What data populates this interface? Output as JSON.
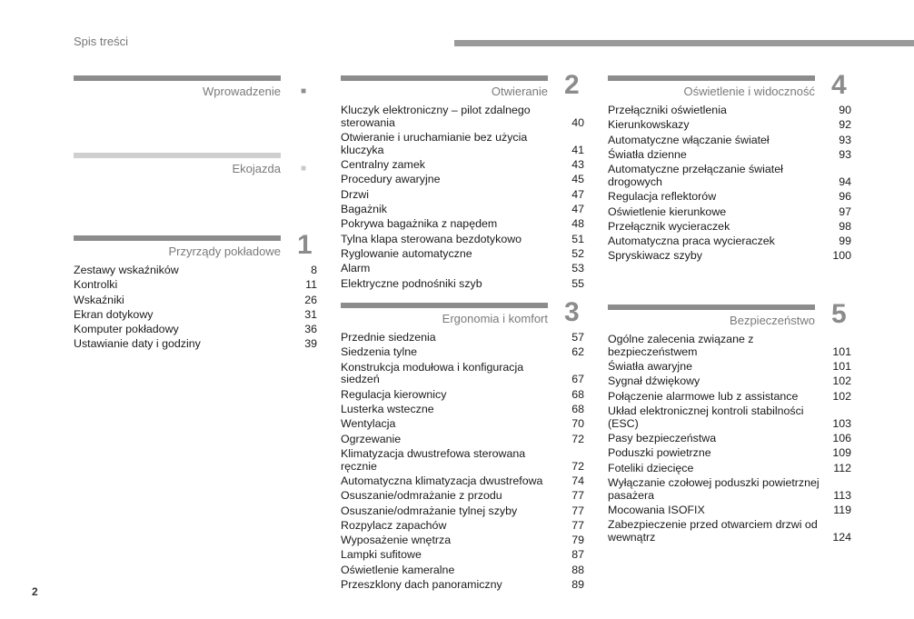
{
  "header": {
    "title": "Spis treści"
  },
  "page_number": "2",
  "sections": {
    "intro": {
      "title": "Wprowadzenie",
      "marker": "■"
    },
    "eco": {
      "title": "Ekojazda",
      "marker": "■"
    },
    "s1": {
      "title": "Przyrządy pokładowe",
      "marker": "1",
      "items": [
        {
          "t": "Zestawy wskaźników",
          "p": "8"
        },
        {
          "t": "Kontrolki",
          "p": "11"
        },
        {
          "t": "Wskaźniki",
          "p": "26"
        },
        {
          "t": "Ekran dotykowy",
          "p": "31"
        },
        {
          "t": "Komputer pokładowy",
          "p": "36"
        },
        {
          "t": "Ustawianie daty i godziny",
          "p": "39"
        }
      ]
    },
    "s2": {
      "title": "Otwieranie",
      "marker": "2",
      "items": [
        {
          "t": "Kluczyk elektroniczny – pilot zdalnego sterowania",
          "p": "40"
        },
        {
          "t": "Otwieranie i uruchamianie bez użycia kluczyka",
          "p": "41"
        },
        {
          "t": "Centralny zamek",
          "p": "43"
        },
        {
          "t": "Procedury awaryjne",
          "p": "45"
        },
        {
          "t": "Drzwi",
          "p": "47"
        },
        {
          "t": "Bagażnik",
          "p": "47"
        },
        {
          "t": "Pokrywa bagażnika z napędem",
          "p": "48"
        },
        {
          "t": "Tylna klapa sterowana bezdotykowo",
          "p": "51"
        },
        {
          "t": "Ryglowanie automatyczne",
          "p": "52"
        },
        {
          "t": "Alarm",
          "p": "53"
        },
        {
          "t": "Elektryczne podnośniki szyb",
          "p": "55"
        }
      ]
    },
    "s3": {
      "title": "Ergonomia i komfort",
      "marker": "3",
      "items": [
        {
          "t": "Przednie siedzenia",
          "p": "57"
        },
        {
          "t": "Siedzenia tylne",
          "p": "62"
        },
        {
          "t": "Konstrukcja modułowa i konfiguracja siedzeń",
          "p": "67"
        },
        {
          "t": "Regulacja kierownicy",
          "p": "68"
        },
        {
          "t": "Lusterka wsteczne",
          "p": "68"
        },
        {
          "t": "Wentylacja",
          "p": "70"
        },
        {
          "t": "Ogrzewanie",
          "p": "72"
        },
        {
          "t": "Klimatyzacja dwustrefowa sterowana ręcznie",
          "p": "72"
        },
        {
          "t": "Automatyczna klimatyzacja dwustrefowa",
          "p": "74"
        },
        {
          "t": "Osuszanie/odmrażanie z przodu",
          "p": "77"
        },
        {
          "t": "Osuszanie/odmrażanie tylnej szyby",
          "p": "77"
        },
        {
          "t": "Rozpylacz zapachów",
          "p": "77"
        },
        {
          "t": "Wyposażenie wnętrza",
          "p": "79"
        },
        {
          "t": "Lampki sufitowe",
          "p": "87"
        },
        {
          "t": "Oświetlenie kameralne",
          "p": "88"
        },
        {
          "t": "Przeszklony dach panoramiczny",
          "p": "89"
        }
      ]
    },
    "s4": {
      "title": "Oświetlenie i widoczność",
      "marker": "4",
      "items": [
        {
          "t": "Przełączniki oświetlenia",
          "p": "90"
        },
        {
          "t": "Kierunkowskazy",
          "p": "92"
        },
        {
          "t": "Automatyczne włączanie świateł",
          "p": "93"
        },
        {
          "t": "Światła dzienne",
          "p": "93"
        },
        {
          "t": "Automatyczne przełączanie świateł drogowych",
          "p": "94"
        },
        {
          "t": "Regulacja reflektorów",
          "p": "96"
        },
        {
          "t": "Oświetlenie kierunkowe",
          "p": "97"
        },
        {
          "t": "Przełącznik wycieraczek",
          "p": "98"
        },
        {
          "t": "Automatyczna praca wycieraczek",
          "p": "99"
        },
        {
          "t": "Spryskiwacz szyby",
          "p": "100"
        }
      ]
    },
    "s5": {
      "title": "Bezpieczeństwo",
      "marker": "5",
      "items": [
        {
          "t": "Ogólne zalecenia związane z bezpieczeństwem",
          "p": "101"
        },
        {
          "t": "Światła awaryjne",
          "p": "101"
        },
        {
          "t": "Sygnał dźwiękowy",
          "p": "102"
        },
        {
          "t": "Połączenie alarmowe lub z assistance",
          "p": "102"
        },
        {
          "t": "Układ elektronicznej kontroli stabilności (ESC)",
          "p": "103"
        },
        {
          "t": "Pasy bezpieczeństwa",
          "p": "106"
        },
        {
          "t": "Poduszki powietrzne",
          "p": "109"
        },
        {
          "t": "Foteliki dziecięce",
          "p": "112"
        },
        {
          "t": "Wyłączanie czołowej poduszki powietrznej pasażera",
          "p": "113"
        },
        {
          "t": "Mocowania ISOFIX",
          "p": "119"
        },
        {
          "t": "Zabezpieczenie przed otwarciem drzwi od wewnątrz",
          "p": "124"
        }
      ]
    }
  }
}
